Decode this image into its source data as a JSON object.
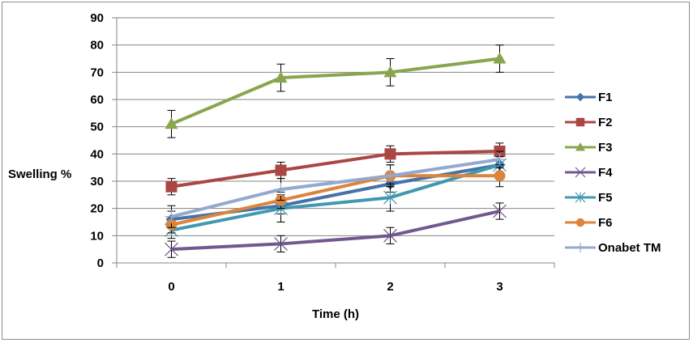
{
  "chart_data": {
    "type": "line",
    "title": "",
    "xlabel": "Time (h)",
    "ylabel": "Swelling %",
    "x": [
      0,
      1,
      2,
      3
    ],
    "categories": [
      "0",
      "1",
      "2",
      "3"
    ],
    "ylim": [
      0,
      90
    ],
    "yticks": [
      0,
      10,
      20,
      30,
      40,
      50,
      60,
      70,
      80,
      90
    ],
    "grid": true,
    "legend_position": "right",
    "error_bars": true,
    "series": [
      {
        "name": "F1",
        "color": "#4572A7",
        "marker": "diamond",
        "values": [
          16,
          21,
          29,
          36
        ],
        "errors": [
          3,
          3,
          3,
          3
        ]
      },
      {
        "name": "F2",
        "color": "#AA4643",
        "marker": "square",
        "values": [
          28,
          34,
          40,
          41
        ],
        "errors": [
          3,
          3,
          3,
          3
        ]
      },
      {
        "name": "F3",
        "color": "#89A54E",
        "marker": "triangle",
        "values": [
          51,
          68,
          70,
          75
        ],
        "errors": [
          5,
          5,
          5,
          5
        ]
      },
      {
        "name": "F4",
        "color": "#71588F",
        "marker": "x",
        "values": [
          5,
          7,
          10,
          19
        ],
        "errors": [
          3,
          3,
          3,
          3
        ]
      },
      {
        "name": "F5",
        "color": "#4198AF",
        "marker": "star",
        "values": [
          12,
          20,
          24,
          36
        ],
        "errors": [
          3,
          5,
          5,
          3
        ]
      },
      {
        "name": "F6",
        "color": "#DB843D",
        "marker": "circle",
        "values": [
          14,
          23,
          32,
          32
        ],
        "errors": [
          3,
          3,
          4,
          4
        ]
      },
      {
        "name": "Onabet TM",
        "color": "#93A9CF",
        "marker": "plus",
        "values": [
          17,
          27,
          32,
          38
        ],
        "errors": [
          4,
          4,
          4,
          3
        ]
      }
    ]
  }
}
